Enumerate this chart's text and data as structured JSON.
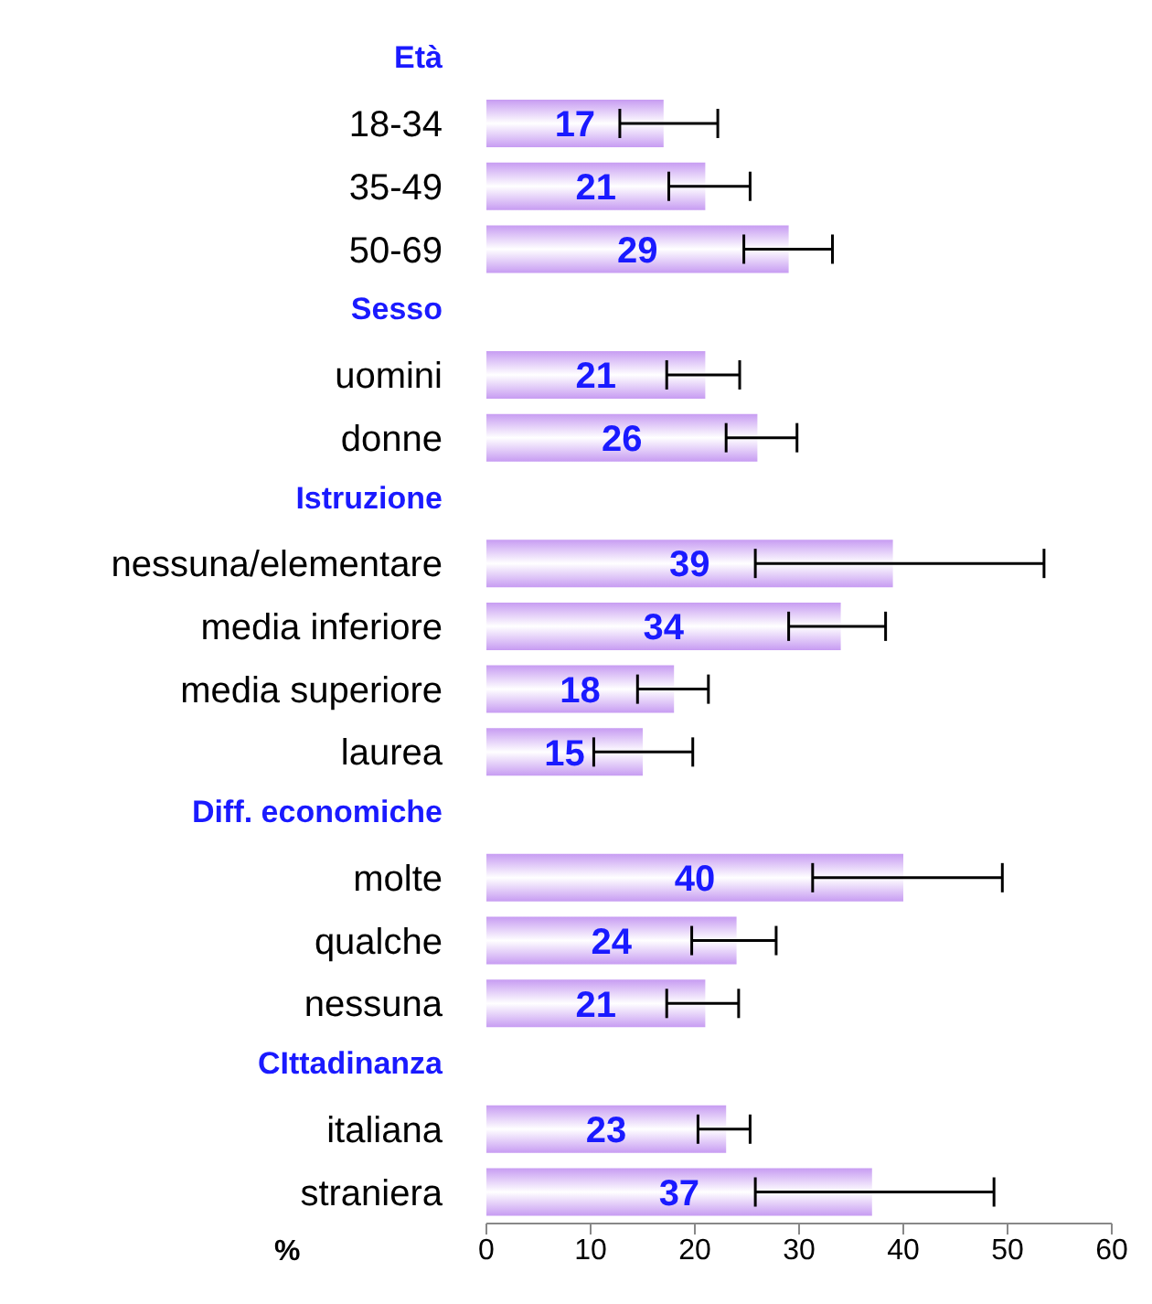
{
  "chart_data": {
    "type": "bar",
    "orientation": "horizontal",
    "xlabel": "%",
    "color": "#c79cf2",
    "data_labels": true,
    "categories": [
      "Età",
      "18-34",
      "35-49",
      "50-69",
      "Sesso",
      "uomini",
      "donne",
      "Istruzione",
      "nessuna/elementare",
      "media inferiore",
      "media superiore",
      "laurea",
      "Diff. economiche",
      "molte",
      "qualche",
      "nessuna",
      "CIttadinanza",
      "italiana",
      "straniera"
    ],
    "values": [
      null,
      17,
      21,
      29,
      null,
      21,
      26,
      null,
      39,
      34,
      18,
      15,
      null,
      40,
      24,
      21,
      null,
      23,
      37
    ],
    "errors": [
      null,
      [
        12.8,
        22.2
      ],
      [
        17.5,
        25.3
      ],
      [
        24.7,
        33.2
      ],
      null,
      [
        17.3,
        24.3
      ],
      [
        23,
        29.8
      ],
      null,
      [
        25.8,
        53.5
      ],
      [
        29,
        38.3
      ],
      [
        14.5,
        21.3
      ],
      [
        10.3,
        19.8
      ],
      null,
      [
        31.3,
        49.5
      ],
      [
        19.7,
        27.8
      ],
      [
        17.3,
        24.2
      ],
      null,
      [
        20.3,
        25.3
      ],
      [
        25.8,
        48.7
      ]
    ],
    "xlim": [
      0,
      60
    ],
    "xticks": [
      0,
      10,
      20,
      30,
      40,
      50,
      60
    ]
  }
}
